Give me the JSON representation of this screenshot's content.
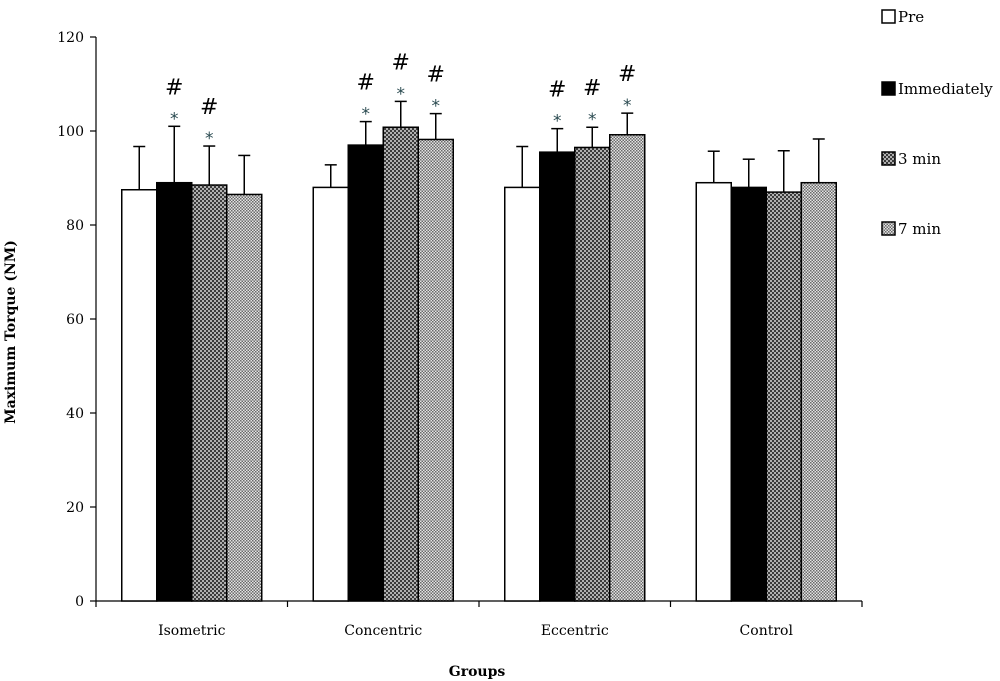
{
  "chart_data": {
    "type": "bar",
    "title": "",
    "xlabel": "Groups",
    "ylabel": "Maximum Torque (NM)",
    "ylim": [
      0,
      120
    ],
    "yticks": [
      0,
      20,
      40,
      60,
      80,
      100,
      120
    ],
    "categories": [
      "Isometric",
      "Concentric",
      "Eccentric",
      "Control"
    ],
    "series": [
      {
        "name": "Pre",
        "values": [
          87.5,
          88,
          88,
          89
        ],
        "errors": [
          9.2,
          4.8,
          8.7,
          6.7
        ],
        "fill": "white"
      },
      {
        "name": "Immediately",
        "values": [
          89,
          97,
          95.5,
          88
        ],
        "errors": [
          12,
          5,
          5,
          6
        ],
        "fill": "black"
      },
      {
        "name": "3 min",
        "values": [
          88.5,
          100.8,
          96.5,
          87
        ],
        "errors": [
          8.3,
          5.5,
          4.3,
          8.8
        ],
        "fill": "dots-coarse"
      },
      {
        "name": "7 min",
        "values": [
          86.5,
          98.2,
          99.2,
          89
        ],
        "errors": [
          8.3,
          5.5,
          4.6,
          9.3
        ],
        "fill": "dots-fine"
      }
    ],
    "annotations": [
      {
        "category": "Isometric",
        "series": "Immediately",
        "marks": [
          "#",
          "*"
        ]
      },
      {
        "category": "Isometric",
        "series": "3 min",
        "marks": [
          "#",
          "*"
        ]
      },
      {
        "category": "Concentric",
        "series": "Immediately",
        "marks": [
          "#",
          "*"
        ]
      },
      {
        "category": "Concentric",
        "series": "3 min",
        "marks": [
          "#",
          "*"
        ]
      },
      {
        "category": "Concentric",
        "series": "7 min",
        "marks": [
          "#",
          "*"
        ]
      },
      {
        "category": "Eccentric",
        "series": "Immediately",
        "marks": [
          "#",
          "*"
        ]
      },
      {
        "category": "Eccentric",
        "series": "3 min",
        "marks": [
          "#",
          "*"
        ]
      },
      {
        "category": "Eccentric",
        "series": "7 min",
        "marks": [
          "#",
          "*"
        ]
      }
    ],
    "legend_position": "right",
    "grid": false
  }
}
